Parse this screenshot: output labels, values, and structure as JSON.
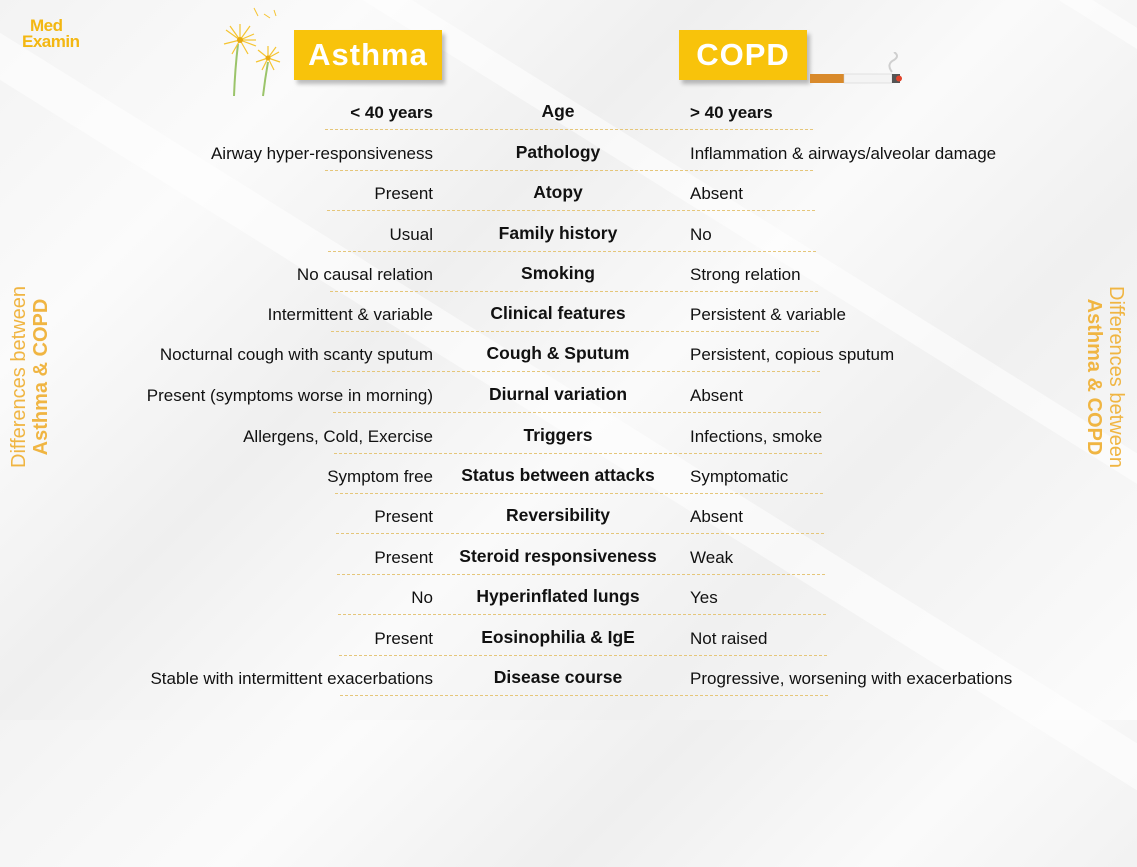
{
  "brand": {
    "line1": "Med",
    "line2": "Examin"
  },
  "headers": {
    "left": "Asthma",
    "right": "COPD"
  },
  "side_label": {
    "line1": "Differences between",
    "line2": "Asthma & COPD"
  },
  "colors": {
    "accent": "#f8c30b",
    "side_text": "#f0b542"
  },
  "icons": {
    "left": "dandelion-icon",
    "right": "cigarette-icon"
  },
  "rows": [
    {
      "feature": "Age",
      "asthma": "< 40 years",
      "copd": "> 40 years"
    },
    {
      "feature": "Pathology",
      "asthma": "Airway hyper-responsiveness",
      "copd": "Inflammation & airways/alveolar damage"
    },
    {
      "feature": "Atopy",
      "asthma": "Present",
      "copd": "Absent"
    },
    {
      "feature": "Family history",
      "asthma": "Usual",
      "copd": "No"
    },
    {
      "feature": "Smoking",
      "asthma": "No causal relation",
      "copd": "Strong relation"
    },
    {
      "feature": "Clinical features",
      "asthma": "Intermittent & variable",
      "copd": "Persistent & variable"
    },
    {
      "feature": "Cough & Sputum",
      "asthma": "Nocturnal cough with scanty sputum",
      "copd": "Persistent, copious sputum"
    },
    {
      "feature": "Diurnal variation",
      "asthma": "Present (symptoms worse in morning)",
      "copd": "Absent"
    },
    {
      "feature": "Triggers",
      "asthma": "Allergens, Cold, Exercise",
      "copd": "Infections, smoke"
    },
    {
      "feature": "Status between attacks",
      "asthma": "Symptom free",
      "copd": "Symptomatic"
    },
    {
      "feature": "Reversibility",
      "asthma": "Present",
      "copd": "Absent"
    },
    {
      "feature": "Steroid responsiveness",
      "asthma": "Present",
      "copd": "Weak"
    },
    {
      "feature": "Hyperinflated lungs",
      "asthma": "No",
      "copd": "Yes"
    },
    {
      "feature": "Eosinophilia & IgE",
      "asthma": "Present",
      "copd": "Not raised"
    },
    {
      "feature": "Disease course",
      "asthma": "Stable with intermittent exacerbations",
      "copd": "Progressive, worsening with exacerbations"
    }
  ]
}
